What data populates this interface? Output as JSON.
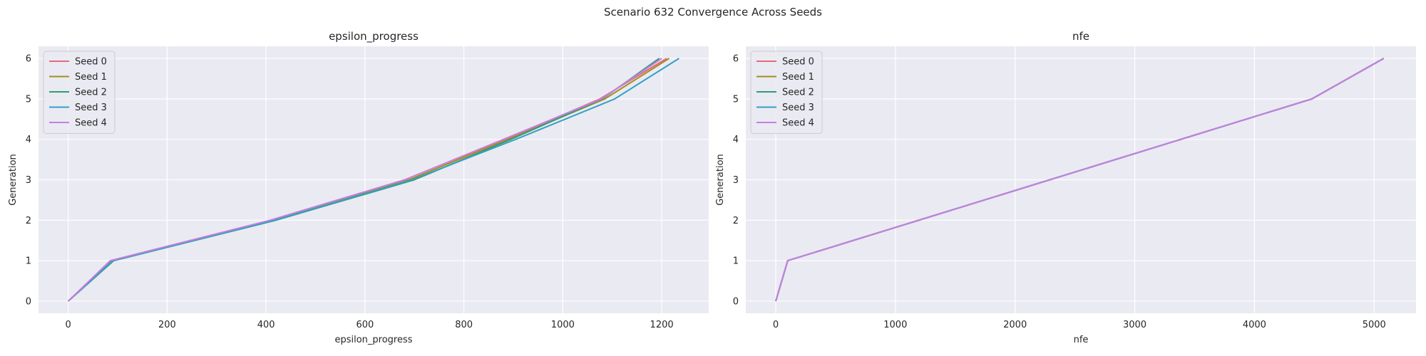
{
  "figure": {
    "title": "Scenario 632 Convergence Across Seeds"
  },
  "chart_data": [
    {
      "type": "line",
      "title": "epsilon_progress",
      "xlabel": "epsilon_progress",
      "ylabel": "Generation",
      "xlim": [
        -60,
        1295
      ],
      "ylim": [
        -0.3,
        6.3
      ],
      "xticks": [
        0,
        200,
        400,
        600,
        800,
        1000,
        1200
      ],
      "yticks": [
        0,
        1,
        2,
        3,
        4,
        5,
        6
      ],
      "grid": true,
      "legend": "top-left",
      "series": [
        {
          "name": "Seed 0",
          "color": "#e8697c",
          "x": [
            0,
            88,
            412,
            690,
            885,
            1075,
            1210
          ],
          "y": [
            0,
            1,
            2,
            3,
            4,
            5,
            6
          ]
        },
        {
          "name": "Seed 1",
          "color": "#a3901e",
          "x": [
            0,
            90,
            415,
            688,
            890,
            1085,
            1215
          ],
          "y": [
            0,
            1,
            2,
            3,
            4,
            5,
            6
          ]
        },
        {
          "name": "Seed 2",
          "color": "#2e9e74",
          "x": [
            0,
            92,
            420,
            700,
            895,
            1080,
            1195
          ],
          "y": [
            0,
            1,
            2,
            3,
            4,
            5,
            6
          ]
        },
        {
          "name": "Seed 3",
          "color": "#34a0c4",
          "x": [
            0,
            90,
            418,
            695,
            905,
            1105,
            1235
          ],
          "y": [
            0,
            1,
            2,
            3,
            4,
            5,
            6
          ]
        },
        {
          "name": "Seed 4",
          "color": "#c77de0",
          "x": [
            0,
            85,
            408,
            680,
            880,
            1078,
            1200
          ],
          "y": [
            0,
            1,
            2,
            3,
            4,
            5,
            6
          ]
        }
      ]
    },
    {
      "type": "line",
      "title": "nfe",
      "xlabel": "nfe",
      "ylabel": "Generation",
      "xlim": [
        -250,
        5350
      ],
      "ylim": [
        -0.3,
        6.3
      ],
      "xticks": [
        0,
        1000,
        2000,
        3000,
        4000,
        5000
      ],
      "yticks": [
        0,
        1,
        2,
        3,
        4,
        5,
        6
      ],
      "grid": true,
      "legend": "top-left",
      "series": [
        {
          "name": "Seed 0",
          "color": "#e8697c",
          "x": [
            0,
            100,
            4480,
            5080
          ],
          "y": [
            0,
            1,
            5,
            6
          ]
        },
        {
          "name": "Seed 1",
          "color": "#a3901e",
          "x": [
            0,
            100,
            4480,
            5080
          ],
          "y": [
            0,
            1,
            5,
            6
          ]
        },
        {
          "name": "Seed 2",
          "color": "#2e9e74",
          "x": [
            0,
            100,
            4480,
            5080
          ],
          "y": [
            0,
            1,
            5,
            6
          ]
        },
        {
          "name": "Seed 3",
          "color": "#34a0c4",
          "x": [
            0,
            100,
            4480,
            5080
          ],
          "y": [
            0,
            1,
            5,
            6
          ]
        },
        {
          "name": "Seed 4",
          "color": "#c77de0",
          "x": [
            0,
            100,
            4480,
            5080
          ],
          "y": [
            0,
            1,
            5,
            6
          ]
        }
      ]
    }
  ]
}
